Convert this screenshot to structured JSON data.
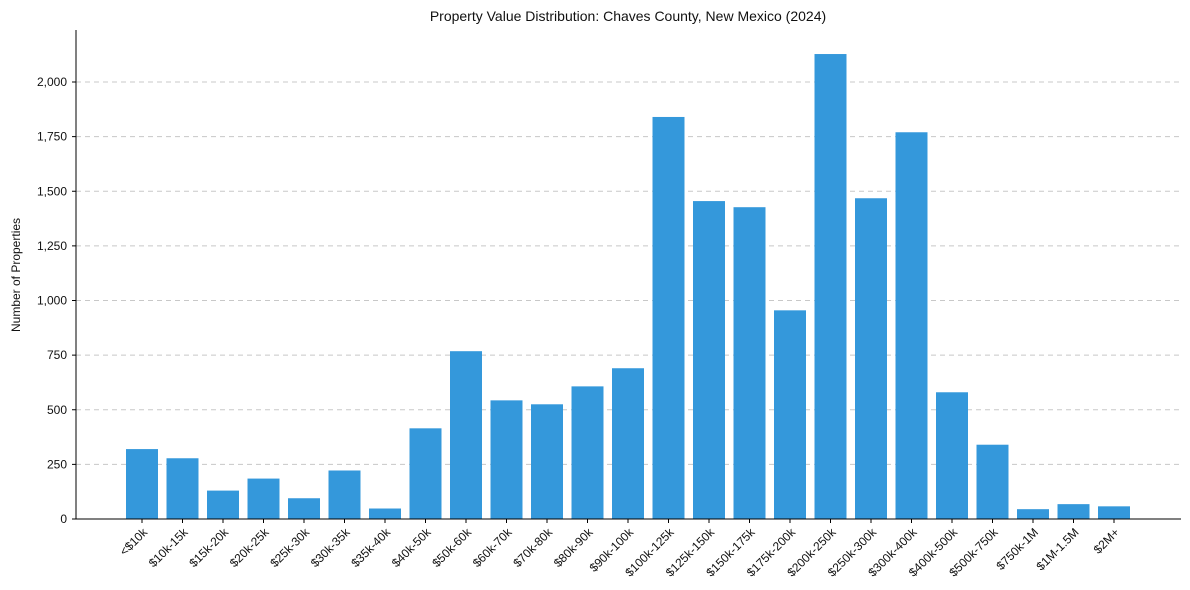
{
  "chart_data": {
    "type": "bar",
    "title": "Property Value Distribution: Chaves County, New Mexico (2024)",
    "xlabel": "",
    "ylabel": "Number of Properties",
    "ylim": [
      0,
      2240
    ],
    "yticks": [
      0,
      250,
      500,
      750,
      1000,
      1250,
      1500,
      1750,
      2000
    ],
    "ytick_labels": [
      "0",
      "250",
      "500",
      "750",
      "1,000",
      "1,250",
      "1,500",
      "1,750",
      "2,000"
    ],
    "grid": "y",
    "bar_color": "#3498db",
    "categories": [
      "<$10k",
      "$10k-15k",
      "$15k-20k",
      "$20k-25k",
      "$25k-30k",
      "$30k-35k",
      "$35k-40k",
      "$40k-50k",
      "$50k-60k",
      "$60k-70k",
      "$70k-80k",
      "$80k-90k",
      "$90k-100k",
      "$100k-125k",
      "$125k-150k",
      "$150k-175k",
      "$175k-200k",
      "$200k-250k",
      "$250k-300k",
      "$300k-400k",
      "$400k-500k",
      "$500k-750k",
      "$750k-1M",
      "$1M-1.5M",
      "$2M+"
    ],
    "values": [
      320,
      278,
      130,
      185,
      95,
      222,
      48,
      415,
      768,
      543,
      525,
      607,
      690,
      1840,
      1455,
      1427,
      955,
      2128,
      1468,
      1770,
      580,
      340,
      45,
      68,
      58
    ]
  }
}
